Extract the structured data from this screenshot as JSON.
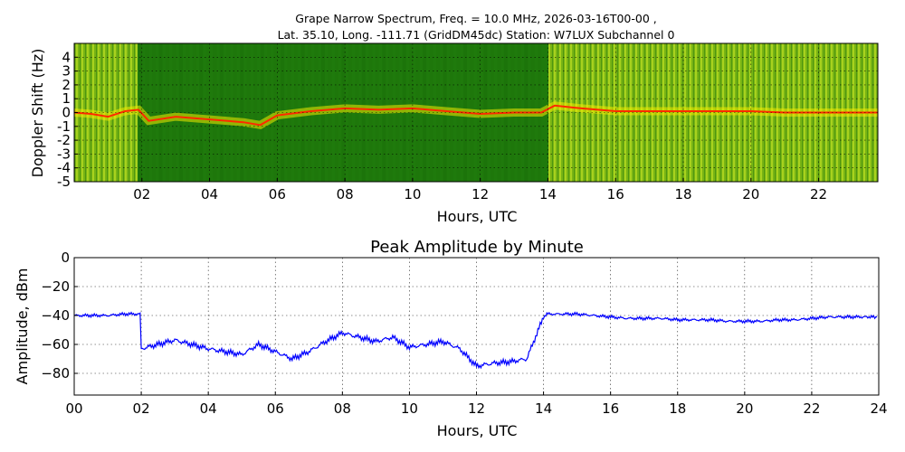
{
  "figure": {
    "title_line1": "Grape Narrow Spectrum, Freq. = 10.0 MHz, 2026-03-16T00-00 ,",
    "title_line2": "Lat.  35.10, Long. -111.71 (GridDM45dc) Station: W7LUX Subchannel 0"
  },
  "chart_data": [
    {
      "type": "heatmap",
      "xlabel": "Hours, UTC",
      "ylabel": "Doppler Shift (Hz)",
      "xlim": [
        0,
        23.75
      ],
      "ylim": [
        -5,
        5
      ],
      "x_ticks": [
        "02",
        "04",
        "06",
        "08",
        "10",
        "12",
        "14",
        "16",
        "18",
        "20",
        "22"
      ],
      "x_tick_values": [
        2,
        4,
        6,
        8,
        10,
        12,
        14,
        16,
        18,
        20,
        22
      ],
      "y_ticks": [
        "4",
        "3",
        "2",
        "1",
        "0",
        "-1",
        "-2",
        "-3",
        "-4",
        "-5"
      ],
      "y_tick_values": [
        4,
        3,
        2,
        1,
        0,
        -1,
        -2,
        -3,
        -4,
        -5
      ],
      "grid": true,
      "colors": {
        "background": "#1f7a0c",
        "noise": "#8cc21a",
        "signal": "#f2ea00",
        "peak": "#ff2a00"
      },
      "peak_trace": {
        "hours": [
          0,
          0.5,
          1.0,
          1.5,
          1.9,
          2.2,
          3.0,
          4.0,
          5.0,
          5.5,
          6.0,
          7.0,
          8.0,
          9.0,
          10.0,
          11.0,
          12.0,
          13.0,
          13.8,
          14.2,
          15.0,
          16.0,
          17.0,
          18.0,
          19.0,
          20.0,
          21.0,
          22.0,
          23.0,
          23.75
        ],
        "doppler_hz": [
          0,
          -0.1,
          -0.3,
          0.1,
          0.2,
          -0.6,
          -0.3,
          -0.5,
          -0.7,
          -0.9,
          -0.2,
          0.1,
          0.3,
          0.2,
          0.3,
          0.1,
          -0.1,
          0.0,
          0.0,
          0.5,
          0.3,
          0.1,
          0.1,
          0.1,
          0.1,
          0.1,
          0.0,
          0.0,
          0.0,
          0.0
        ]
      }
    },
    {
      "type": "line",
      "title": "Peak Amplitude by Minute",
      "xlabel": "Hours, UTC",
      "ylabel": "Amplitude, dBm",
      "xlim": [
        0,
        24
      ],
      "ylim": [
        -95,
        0
      ],
      "x_ticks": [
        "00",
        "02",
        "04",
        "06",
        "08",
        "10",
        "12",
        "14",
        "16",
        "18",
        "20",
        "22",
        "24"
      ],
      "x_tick_values": [
        0,
        2,
        4,
        6,
        8,
        10,
        12,
        14,
        16,
        18,
        20,
        22,
        24
      ],
      "y_ticks": [
        "0",
        "−20",
        "−40",
        "−60",
        "−80"
      ],
      "y_tick_values": [
        0,
        -20,
        -40,
        -60,
        -80
      ],
      "grid": true,
      "line_color": "#0000ff",
      "series": [
        {
          "x": [
            0,
            0.5,
            1.0,
            1.5,
            1.9,
            2.0,
            2.5,
            3.0,
            3.5,
            4.0,
            4.5,
            5.0,
            5.5,
            6.0,
            6.5,
            7.0,
            7.5,
            8.0,
            8.5,
            9.0,
            9.5,
            10.0,
            10.5,
            11.0,
            11.5,
            12.0,
            12.5,
            13.0,
            13.5,
            14.0,
            14.1,
            14.5,
            15.0,
            15.5,
            16.0,
            16.5,
            17.0,
            17.5,
            18.0,
            18.5,
            19.0,
            19.5,
            20.0,
            20.5,
            21.0,
            21.5,
            22.0,
            22.5,
            23.0,
            23.5,
            23.95
          ],
          "values": [
            -40,
            -40,
            -40,
            -39,
            -39,
            -63,
            -60,
            -57,
            -60,
            -63,
            -65,
            -67,
            -60,
            -65,
            -70,
            -65,
            -58,
            -52,
            -55,
            -58,
            -55,
            -62,
            -60,
            -58,
            -63,
            -75,
            -73,
            -72,
            -70,
            -41,
            -39,
            -39,
            -39,
            -40,
            -41,
            -42,
            -42,
            -42,
            -43,
            -43,
            -43,
            -44,
            -44,
            -44,
            -43,
            -43,
            -42,
            -41,
            -41,
            -41,
            -41
          ]
        }
      ]
    }
  ]
}
